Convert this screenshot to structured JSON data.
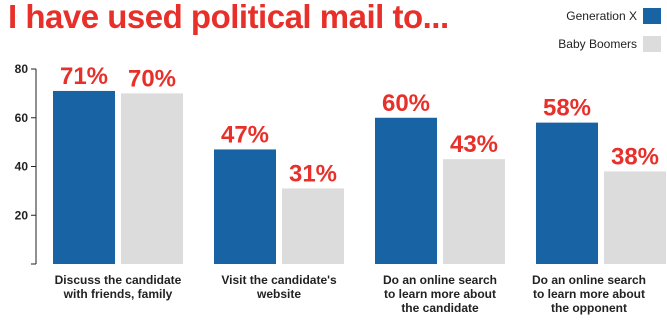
{
  "chart_data": {
    "type": "bar",
    "title": "I have used political mail to...",
    "categories": [
      [
        "Discuss the candidate",
        "with friends, family"
      ],
      [
        "Visit the candidate's",
        "website"
      ],
      [
        "Do an online search",
        "to learn more about",
        "the candidate"
      ],
      [
        "Do an online search",
        "to learn more about",
        "the opponent"
      ]
    ],
    "series": [
      {
        "name": "Generation X",
        "values": [
          71,
          47,
          60,
          58
        ],
        "labels": [
          "71%",
          "47%",
          "60%",
          "58%"
        ],
        "color": "#1763a3"
      },
      {
        "name": "Baby Boomers",
        "values": [
          70,
          31,
          43,
          38
        ],
        "labels": [
          "70%",
          "31%",
          "43%",
          "38%"
        ],
        "color": "#dcdcdc"
      }
    ],
    "yticks": [
      "20",
      "40",
      "60",
      "80"
    ],
    "ylim": [
      0,
      80
    ],
    "xlabel": "",
    "ylabel": "",
    "grid": false,
    "legend_position": "top-right",
    "title_color": "#e8302b",
    "value_label_color": "#e8302b"
  }
}
